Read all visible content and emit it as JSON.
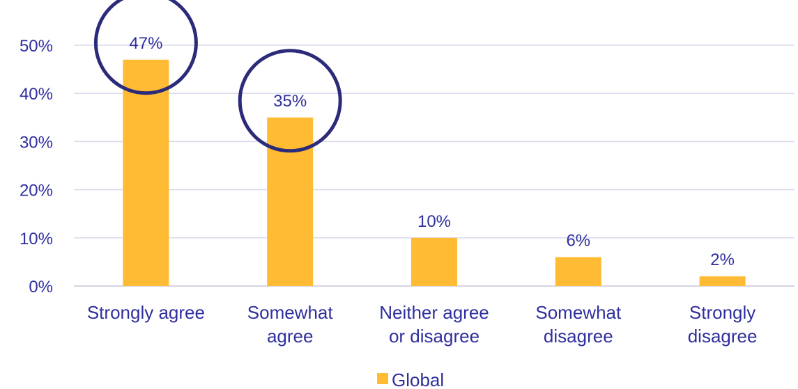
{
  "chart_data": {
    "type": "bar",
    "categories": [
      [
        "Strongly agree"
      ],
      [
        "Somewhat",
        "agree"
      ],
      [
        "Neither agree",
        "or disagree"
      ],
      [
        "Somewhat",
        "disagree"
      ],
      [
        "Strongly",
        "disagree"
      ]
    ],
    "series": [
      {
        "name": "Global",
        "values": [
          47,
          35,
          10,
          6,
          2
        ],
        "color": "#ffbb33"
      }
    ],
    "data_labels": [
      "47%",
      "35%",
      "10%",
      "6%",
      "2%"
    ],
    "y_ticks": [
      0,
      10,
      20,
      30,
      40,
      50
    ],
    "y_tick_labels": [
      "0%",
      "10%",
      "20%",
      "30%",
      "40%",
      "50%"
    ],
    "ylim": [
      0,
      55
    ],
    "grid": true,
    "legend": {
      "position": "bottom"
    },
    "highlighted_categories": [
      0,
      1
    ],
    "colors": {
      "text": "#2f2f9e",
      "circle": "#2b2b7a",
      "grid": "#d9d9ee"
    }
  }
}
